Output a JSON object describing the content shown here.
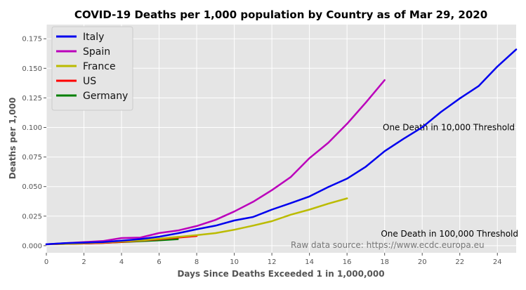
{
  "chart_data": {
    "type": "line",
    "title": "COVID-19 Deaths per 1,000 population by Country as of Mar 29, 2020",
    "xlabel": "Days Since Deaths Exceeded 1 in 1,000,000",
    "ylabel": "Deaths per 1,000",
    "xlim": [
      0,
      25
    ],
    "ylim": [
      -0.006,
      0.187
    ],
    "xticks": [
      0,
      2,
      4,
      6,
      8,
      10,
      12,
      14,
      16,
      18,
      20,
      22,
      24
    ],
    "yticks": [
      0.0,
      0.025,
      0.05,
      0.075,
      0.1,
      0.125,
      0.15,
      0.175
    ],
    "ytick_labels": [
      "0.000",
      "0.025",
      "0.050",
      "0.075",
      "0.100",
      "0.125",
      "0.150",
      "0.175"
    ],
    "grid": true,
    "legend_position": "top-left",
    "series": [
      {
        "name": "Italy",
        "color": "#0000ee",
        "x": [
          0,
          1,
          2,
          3,
          4,
          5,
          6,
          7,
          8,
          9,
          10,
          11,
          12,
          13,
          14,
          15,
          16,
          17,
          18,
          19,
          20,
          21,
          22,
          23,
          24,
          25
        ],
        "y": [
          0.0012,
          0.0022,
          0.0026,
          0.0031,
          0.0043,
          0.0056,
          0.0076,
          0.0105,
          0.0139,
          0.0169,
          0.0213,
          0.0243,
          0.0305,
          0.036,
          0.0416,
          0.0496,
          0.0567,
          0.0668,
          0.0799,
          0.0903,
          0.1001,
          0.1131,
          0.1245,
          0.135,
          0.1515,
          0.166
        ]
      },
      {
        "name": "Spain",
        "color": "#bb00bb",
        "x": [
          0,
          1,
          2,
          3,
          4,
          5,
          6,
          7,
          8,
          9,
          10,
          11,
          12,
          13,
          14,
          15,
          16,
          17,
          18
        ],
        "y": [
          0.0012,
          0.0021,
          0.003,
          0.0039,
          0.0065,
          0.0068,
          0.0107,
          0.0128,
          0.0166,
          0.0218,
          0.0289,
          0.0371,
          0.047,
          0.058,
          0.074,
          0.087,
          0.1031,
          0.121,
          0.14
        ]
      },
      {
        "name": "France",
        "color": "#bbbb00",
        "x": [
          0,
          1,
          2,
          3,
          4,
          5,
          6,
          7,
          8,
          9,
          10,
          11,
          12,
          13,
          14,
          15,
          16
        ],
        "y": [
          0.0012,
          0.0016,
          0.0022,
          0.0028,
          0.0036,
          0.0044,
          0.0059,
          0.0074,
          0.0089,
          0.0106,
          0.0135,
          0.017,
          0.0207,
          0.0262,
          0.0305,
          0.0355,
          0.04
        ]
      },
      {
        "name": "US",
        "color": "#ff0000",
        "x": [
          0,
          1,
          2,
          3,
          4,
          5,
          6,
          7,
          8
        ],
        "y": [
          0.0012,
          0.0016,
          0.0019,
          0.0023,
          0.0032,
          0.0043,
          0.0054,
          0.0068,
          0.0082
        ]
      },
      {
        "name": "Germany",
        "color": "#008000",
        "x": [
          0,
          1,
          2,
          3,
          4,
          5,
          6,
          7
        ],
        "y": [
          0.0012,
          0.0015,
          0.0019,
          0.0024,
          0.003,
          0.0038,
          0.0046,
          0.0055
        ]
      }
    ],
    "annotations": [
      {
        "text": "One Death in 10,000 Threshold",
        "x": 17.9,
        "y": 0.1
      },
      {
        "text": "One Death in 100,000 Threshold",
        "x": 17.8,
        "y": 0.01
      }
    ],
    "source_note": "Raw data source: https://www.ecdc.europa.eu"
  }
}
